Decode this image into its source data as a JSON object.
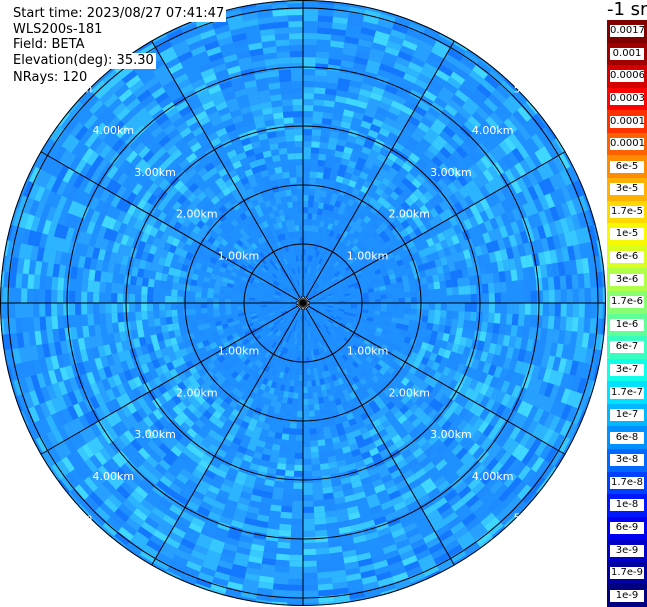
{
  "info": {
    "start_time": "Start time: 2023/08/27 07:41:47",
    "instrument": "WLS200s-181",
    "field": "Field: BETA",
    "elevation": "Elevation(deg): 35.30",
    "nrays": "NRays: 120"
  },
  "colorbar": {
    "unit": "-1 sr",
    "levels": [
      {
        "label": "0.0017",
        "color": "#800000"
      },
      {
        "label": "0.001",
        "color": "#a00000"
      },
      {
        "label": "0.0006",
        "color": "#d40000"
      },
      {
        "label": "0.0003",
        "color": "#ff0000"
      },
      {
        "label": "0.00017",
        "color": "#ff3000"
      },
      {
        "label": "0.0001",
        "color": "#ff6000"
      },
      {
        "label": "6e-5",
        "color": "#ff8c00"
      },
      {
        "label": "3e-5",
        "color": "#ffb000"
      },
      {
        "label": "1.7e-5",
        "color": "#ffd800"
      },
      {
        "label": "1e-5",
        "color": "#f8f800"
      },
      {
        "label": "6e-6",
        "color": "#d8ff20"
      },
      {
        "label": "3e-6",
        "color": "#b0ff48"
      },
      {
        "label": "1.7e-6",
        "color": "#88ff70"
      },
      {
        "label": "1e-6",
        "color": "#60ff98"
      },
      {
        "label": "6e-7",
        "color": "#38ffc0"
      },
      {
        "label": "3e-7",
        "color": "#10ffe8"
      },
      {
        "label": "1.7e-7",
        "color": "#00e0ff"
      },
      {
        "label": "1e-7",
        "color": "#00b8ff"
      },
      {
        "label": "6e-8",
        "color": "#0090ff"
      },
      {
        "label": "3e-8",
        "color": "#0068ff"
      },
      {
        "label": "1.7e-8",
        "color": "#0040ff"
      },
      {
        "label": "1e-8",
        "color": "#0018ff"
      },
      {
        "label": "6e-9",
        "color": "#0000f0"
      },
      {
        "label": "3e-9",
        "color": "#0000c8"
      },
      {
        "label": "1.7e-9",
        "color": "#0000a0"
      },
      {
        "label": "1e-9",
        "color": "#000080"
      }
    ]
  },
  "chart_data": {
    "type": "heatmap",
    "projection": "polar",
    "range_rings_km": [
      1,
      2,
      3,
      4,
      5
    ],
    "ring_label_suffix": "km",
    "radial_spokes_deg": [
      0,
      30,
      60,
      90,
      120,
      150
    ],
    "field": "BETA",
    "nrays": 120,
    "elevation_deg": 35.3,
    "dominant_color": "#1e90ff",
    "palette": [
      "#0a64ff",
      "#1478ff",
      "#1e8cff",
      "#1e90ff",
      "#28a0ff",
      "#2db4ff",
      "#36c8ff",
      "#40d8ff"
    ]
  }
}
